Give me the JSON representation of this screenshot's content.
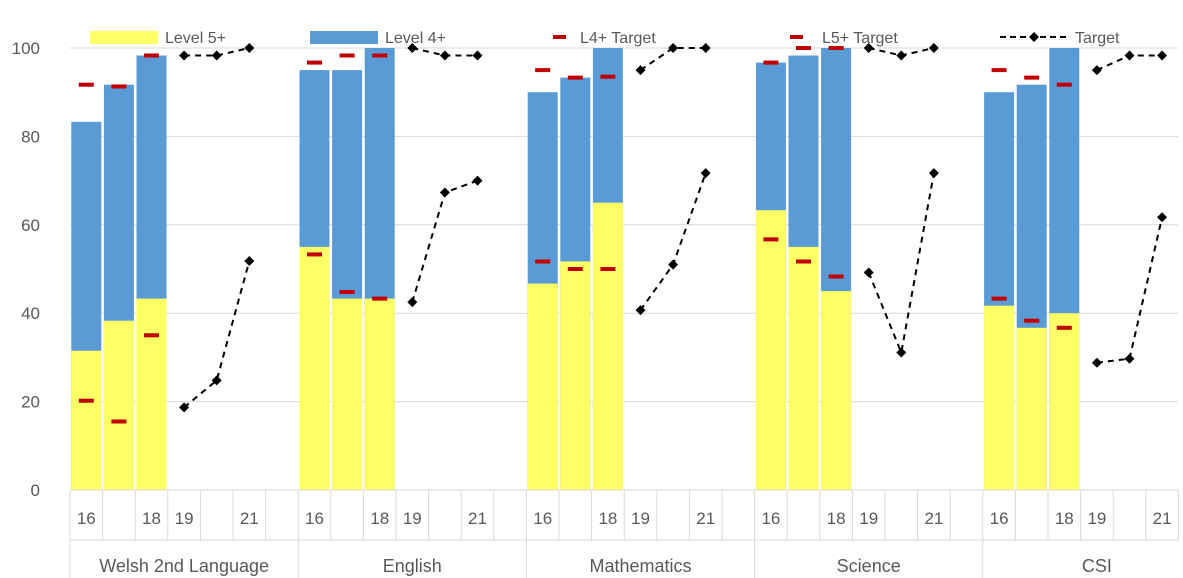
{
  "chart_data": {
    "type": "bar",
    "title": "",
    "xlabel": "",
    "ylabel": "",
    "ylim": [
      0,
      100
    ],
    "yticks": [
      0,
      20,
      40,
      60,
      80,
      100
    ],
    "grid": true,
    "legend_position": "top",
    "legend": [
      {
        "label": "Level 5+",
        "kind": "bar",
        "color": "#ffff66"
      },
      {
        "label": "Level 4+",
        "kind": "bar",
        "color": "#5b9bd5"
      },
      {
        "label": "L4+ Target",
        "kind": "dash",
        "color": "#c00000"
      },
      {
        "label": "L5+ Target",
        "kind": "dash",
        "color": "#c00000"
      },
      {
        "label": "Target",
        "kind": "dashed-line",
        "color": "#000000"
      }
    ],
    "year_slots": [
      "16",
      "17",
      "18",
      "19",
      "20",
      "21"
    ],
    "year_labels": [
      "16",
      "",
      "18",
      "19",
      "",
      "21"
    ],
    "groups": [
      {
        "name": "Welsh 2nd Language",
        "bars": [
          {
            "year": "16",
            "level5": 31.5,
            "level4": 83.3,
            "l4_target": 91.7,
            "l5_target": 20.2
          },
          {
            "year": "17",
            "level5": 38.3,
            "level4": 91.7,
            "l4_target": 91.3,
            "l5_target": 15.5
          },
          {
            "year": "18",
            "level5": 43.3,
            "level4": 98.3,
            "l4_target": 98.3,
            "l5_target": 35.0
          }
        ],
        "target_upper": [
          {
            "year": "19",
            "value": 98.3
          },
          {
            "year": "20",
            "value": 98.3
          },
          {
            "year": "21",
            "value": 100
          }
        ],
        "target_lower": [
          {
            "year": "19",
            "value": 18.7
          },
          {
            "year": "20",
            "value": 24.8
          },
          {
            "year": "21",
            "value": 51.8
          }
        ]
      },
      {
        "name": "English",
        "bars": [
          {
            "year": "16",
            "level5": 55.0,
            "level4": 95.0,
            "l4_target": 96.7,
            "l5_target": 53.3
          },
          {
            "year": "17",
            "level5": 43.3,
            "level4": 95.0,
            "l4_target": 98.3,
            "l5_target": 44.8
          },
          {
            "year": "18",
            "level5": 43.3,
            "level4": 100,
            "l4_target": 98.3,
            "l5_target": 43.3
          }
        ],
        "target_upper": [
          {
            "year": "19",
            "value": 100
          },
          {
            "year": "20",
            "value": 98.3
          },
          {
            "year": "21",
            "value": 98.3
          }
        ],
        "target_lower": [
          {
            "year": "19",
            "value": 42.5
          },
          {
            "year": "20",
            "value": 67.3
          },
          {
            "year": "21",
            "value": 70.0
          }
        ]
      },
      {
        "name": "Mathematics",
        "bars": [
          {
            "year": "16",
            "level5": 46.7,
            "level4": 90.0,
            "l4_target": 95.0,
            "l5_target": 51.7
          },
          {
            "year": "17",
            "level5": 51.7,
            "level4": 93.3,
            "l4_target": 93.3,
            "l5_target": 50.0
          },
          {
            "year": "18",
            "level5": 65.0,
            "level4": 100,
            "l4_target": 93.5,
            "l5_target": 50.0
          }
        ],
        "target_upper": [
          {
            "year": "19",
            "value": 95.0
          },
          {
            "year": "20",
            "value": 100
          },
          {
            "year": "21",
            "value": 100
          }
        ],
        "target_lower": [
          {
            "year": "19",
            "value": 40.7
          },
          {
            "year": "20",
            "value": 51.0
          },
          {
            "year": "21",
            "value": 71.7
          }
        ]
      },
      {
        "name": "Science",
        "bars": [
          {
            "year": "16",
            "level5": 63.3,
            "level4": 96.7,
            "l4_target": 96.7,
            "l5_target": 56.7
          },
          {
            "year": "17",
            "level5": 55.0,
            "level4": 98.3,
            "l4_target": 100,
            "l5_target": 51.7
          },
          {
            "year": "18",
            "level5": 45.0,
            "level4": 100,
            "l4_target": 100,
            "l5_target": 48.3
          }
        ],
        "target_upper": [
          {
            "year": "19",
            "value": 100
          },
          {
            "year": "20",
            "value": 98.3
          },
          {
            "year": "21",
            "value": 100
          }
        ],
        "target_lower": [
          {
            "year": "19",
            "value": 49.2
          },
          {
            "year": "20",
            "value": 31.1
          },
          {
            "year": "21",
            "value": 71.7
          }
        ]
      },
      {
        "name": "CSI",
        "bars": [
          {
            "year": "16",
            "level5": 41.7,
            "level4": 90.0,
            "l4_target": 95.0,
            "l5_target": 43.3
          },
          {
            "year": "17",
            "level5": 36.7,
            "level4": 91.7,
            "l4_target": 93.3,
            "l5_target": 38.3
          },
          {
            "year": "18",
            "level5": 40.0,
            "level4": 100,
            "l4_target": 91.7,
            "l5_target": 36.7
          }
        ],
        "target_upper": [
          {
            "year": "19",
            "value": 95.0
          },
          {
            "year": "20",
            "value": 98.3
          },
          {
            "year": "21",
            "value": 98.3
          }
        ],
        "target_lower": [
          {
            "year": "19",
            "value": 28.8
          },
          {
            "year": "20",
            "value": 29.7
          },
          {
            "year": "21",
            "value": 61.7
          }
        ]
      }
    ]
  }
}
